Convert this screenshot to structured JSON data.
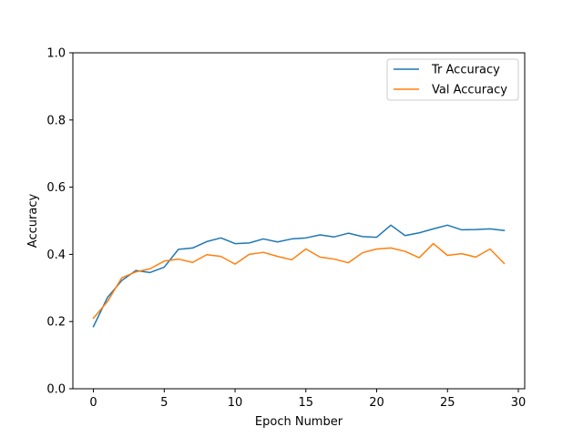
{
  "chart_data": {
    "type": "line",
    "title": "",
    "xlabel": "Epoch Number",
    "ylabel": "Accuracy",
    "xlim": [
      -1.45,
      30.45
    ],
    "ylim": [
      0.0,
      1.0
    ],
    "xticks": [
      0,
      5,
      10,
      15,
      20,
      25,
      30
    ],
    "xtick_labels": [
      "0",
      "5",
      "10",
      "15",
      "20",
      "25",
      "30"
    ],
    "yticks": [
      0.0,
      0.2,
      0.4,
      0.6,
      0.8,
      1.0
    ],
    "ytick_labels": [
      "0.0",
      "0.2",
      "0.4",
      "0.6",
      "0.8",
      "1.0"
    ],
    "grid": false,
    "legend_position": "top-right",
    "x": [
      0,
      1,
      2,
      3,
      4,
      5,
      6,
      7,
      8,
      9,
      10,
      11,
      12,
      13,
      14,
      15,
      16,
      17,
      18,
      19,
      20,
      21,
      22,
      23,
      24,
      25,
      26,
      27,
      28,
      29
    ],
    "series": [
      {
        "name": "Tr Accuracy",
        "color": "#1f77b4",
        "values": [
          0.185,
          0.272,
          0.322,
          0.352,
          0.346,
          0.362,
          0.415,
          0.419,
          0.438,
          0.449,
          0.432,
          0.434,
          0.446,
          0.437,
          0.446,
          0.449,
          0.458,
          0.452,
          0.463,
          0.453,
          0.451,
          0.487,
          0.456,
          0.464,
          0.476,
          0.487,
          0.473,
          0.474,
          0.476,
          0.471
        ]
      },
      {
        "name": "Val Accuracy",
        "color": "#ff7f0e",
        "values": [
          0.21,
          0.26,
          0.33,
          0.348,
          0.357,
          0.38,
          0.386,
          0.376,
          0.399,
          0.394,
          0.371,
          0.4,
          0.406,
          0.394,
          0.384,
          0.416,
          0.392,
          0.386,
          0.375,
          0.405,
          0.416,
          0.419,
          0.409,
          0.39,
          0.432,
          0.397,
          0.402,
          0.392,
          0.416,
          0.373
        ]
      }
    ]
  }
}
